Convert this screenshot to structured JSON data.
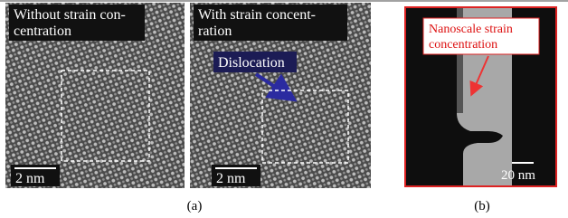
{
  "panel_a_left": {
    "label_lines": [
      "Without strain con-",
      "centration"
    ],
    "scale_bar": "2 nm"
  },
  "panel_a_right": {
    "label_lines": [
      "With strain concent-",
      "ration"
    ],
    "annotation": "Dislocation",
    "scale_bar": "2 nm"
  },
  "panel_b": {
    "label_lines": [
      "Nanoscale strain",
      "concentration"
    ],
    "scale_bar": "20 nm"
  },
  "captions": [
    "(a)",
    "(b)"
  ]
}
